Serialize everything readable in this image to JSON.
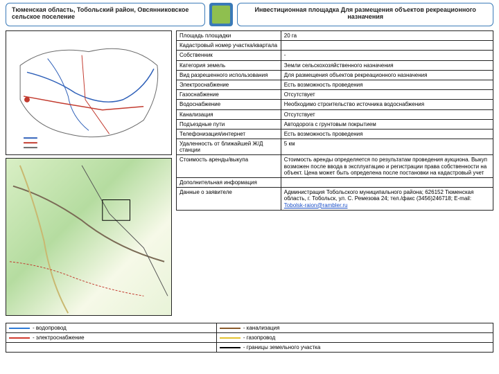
{
  "header": {
    "region": "Тюменская область, Тобольский район, Овсянниковское сельское поселение",
    "title": "Инвестиционная площадка Для размещения объектов рекреационного назначения"
  },
  "info_rows": [
    {
      "k": "Площадь площадки",
      "v": "20 га"
    },
    {
      "k": "Кадастровый номер участка/квартала",
      "v": ""
    },
    {
      "k": "Собственник",
      "v": "-"
    },
    {
      "k": "Категория земель",
      "v": "Земли сельскохозяйственного назначения"
    },
    {
      "k": "Вид разрешенного использования",
      "v": "Для размещения объектов рекреационного назначения"
    },
    {
      "k": "Электроснабжение",
      "v": "Есть возможность проведения"
    },
    {
      "k": "Газоснабжение",
      "v": "Отсутствует"
    },
    {
      "k": "Водоснабжение",
      "v": "Необходимо строительство источника водоснабжения"
    },
    {
      "k": "Канализация",
      "v": "Отсутствует"
    },
    {
      "k": "Подъездные пути",
      "v": "Автодорога с грунтовым покрытием"
    },
    {
      "k": "Телефонизация/интернет",
      "v": "Есть возможность проведения"
    },
    {
      "k": "Удаленность от ближайшей Ж/Д станции",
      "v": "5 км"
    },
    {
      "k": "Стоимость аренды/выкупа",
      "v": "Стоимость аренды определяется по результатам проведения аукциона. Выкуп возможен после ввода в эксплуатацию и регистрации права собственности на объект. Цена может быть определена после постановки на кадастровый учет"
    },
    {
      "k": "Дополнительная информация",
      "v": ""
    },
    {
      "k": "Данные о заявителе",
      "v": "Администрация Тобольского муниципального района; 626152 Тюменская область, г. Тобольск, ул. С. Ремезова 24; тел./факс (3456)246718; E-mail: ",
      "link": "Tobolsk-raion@rambler.ru"
    }
  ],
  "legend": [
    [
      {
        "sw": "sw-blue",
        "t": "- водопровод"
      },
      {
        "sw": "sw-brown",
        "t": "- канализация"
      }
    ],
    [
      {
        "sw": "sw-red",
        "t": "- электроснабжение"
      },
      {
        "sw": "sw-yellow",
        "t": "- газопровод"
      }
    ],
    [
      {
        "sw": "",
        "t": ""
      },
      {
        "sw": "sw-black",
        "t": "- границы земельного участка"
      }
    ]
  ],
  "map1_colors": {
    "river": "#2d5fb8",
    "road": "#c23a2e",
    "outline": "#6a6a6a"
  },
  "styling": {
    "border_color": "#3a7ab8",
    "text_color": "#222222",
    "table_border": "#222222",
    "link_color": "#1a4fc7",
    "font_size_body": 8,
    "font_size_header": 9
  }
}
